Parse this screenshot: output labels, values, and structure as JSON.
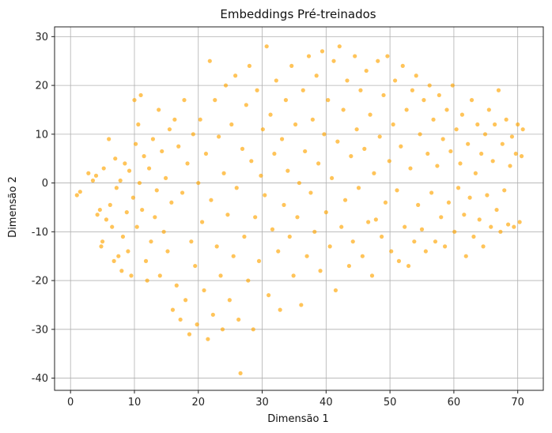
{
  "chart_data": {
    "type": "scatter",
    "title": "Embeddings Pré-treinados",
    "xlabel": "Dimensão 1",
    "ylabel": "Dimensão 2",
    "xlim": [
      -2.5,
      74
    ],
    "ylim": [
      -42.5,
      32
    ],
    "xticks": [
      0,
      10,
      20,
      30,
      40,
      50,
      60,
      70
    ],
    "yticks": [
      -40,
      -30,
      -20,
      -10,
      0,
      10,
      20,
      30
    ],
    "grid": true,
    "point_color": "#ffa500",
    "point_opacity": 0.65,
    "note_points": "approximate sample of the ~1000 points in the cloud",
    "points": [
      [
        1.0,
        -2.5
      ],
      [
        1.5,
        -1.8
      ],
      [
        2.8,
        2.0
      ],
      [
        3.5,
        0.5
      ],
      [
        4.0,
        1.5
      ],
      [
        4.2,
        -6.5
      ],
      [
        4.6,
        -5.5
      ],
      [
        4.8,
        -13
      ],
      [
        5.0,
        -12
      ],
      [
        5.2,
        3.0
      ],
      [
        5.6,
        -7.5
      ],
      [
        6.0,
        9.0
      ],
      [
        6.2,
        -4.5
      ],
      [
        6.5,
        -9.0
      ],
      [
        6.8,
        -16
      ],
      [
        7.0,
        5.0
      ],
      [
        7.2,
        -1.0
      ],
      [
        7.5,
        -15
      ],
      [
        7.8,
        0.5
      ],
      [
        8.0,
        -18
      ],
      [
        8.2,
        -11
      ],
      [
        8.5,
        4.0
      ],
      [
        8.8,
        -6.0
      ],
      [
        9.0,
        -14
      ],
      [
        9.2,
        2.5
      ],
      [
        9.5,
        -19
      ],
      [
        9.8,
        -3.0
      ],
      [
        10.0,
        17
      ],
      [
        10.2,
        8.0
      ],
      [
        10.4,
        -9
      ],
      [
        10.6,
        12
      ],
      [
        10.8,
        0.0
      ],
      [
        11.0,
        18
      ],
      [
        11.2,
        -5.5
      ],
      [
        11.5,
        5.5
      ],
      [
        11.8,
        -16
      ],
      [
        12.0,
        -20
      ],
      [
        12.3,
        3.0
      ],
      [
        12.6,
        -12
      ],
      [
        12.9,
        9.0
      ],
      [
        13.2,
        -7.0
      ],
      [
        13.5,
        -1.5
      ],
      [
        13.8,
        15
      ],
      [
        14.0,
        -19
      ],
      [
        14.3,
        6.5
      ],
      [
        14.6,
        -10
      ],
      [
        14.9,
        1.0
      ],
      [
        15.2,
        -14
      ],
      [
        15.5,
        11
      ],
      [
        15.8,
        -4.0
      ],
      [
        16.0,
        -26
      ],
      [
        16.3,
        13
      ],
      [
        16.6,
        -21
      ],
      [
        16.9,
        7.5
      ],
      [
        17.2,
        -28
      ],
      [
        17.5,
        -2.0
      ],
      [
        17.8,
        17
      ],
      [
        18.0,
        -24
      ],
      [
        18.3,
        4.0
      ],
      [
        18.6,
        -31
      ],
      [
        18.9,
        -12
      ],
      [
        19.2,
        10
      ],
      [
        19.5,
        -17
      ],
      [
        19.8,
        -29
      ],
      [
        20.0,
        0.0
      ],
      [
        20.3,
        13
      ],
      [
        20.6,
        -8.0
      ],
      [
        20.9,
        -22
      ],
      [
        21.2,
        6.0
      ],
      [
        21.5,
        -32
      ],
      [
        21.8,
        25
      ],
      [
        22.0,
        -3.5
      ],
      [
        22.3,
        -27
      ],
      [
        22.6,
        17
      ],
      [
        22.9,
        -13
      ],
      [
        23.2,
        9.5
      ],
      [
        23.5,
        -19
      ],
      [
        23.8,
        -30
      ],
      [
        24.0,
        2.0
      ],
      [
        24.3,
        20
      ],
      [
        24.6,
        -6.5
      ],
      [
        24.9,
        -24
      ],
      [
        25.2,
        12
      ],
      [
        25.5,
        -15
      ],
      [
        25.8,
        22
      ],
      [
        26.0,
        -1.0
      ],
      [
        26.3,
        -28
      ],
      [
        26.6,
        -39
      ],
      [
        26.9,
        7.0
      ],
      [
        27.2,
        -11
      ],
      [
        27.5,
        16
      ],
      [
        27.8,
        -20
      ],
      [
        28.0,
        24
      ],
      [
        28.3,
        4.5
      ],
      [
        28.6,
        -30
      ],
      [
        28.9,
        -7.0
      ],
      [
        29.2,
        19
      ],
      [
        29.5,
        -16
      ],
      [
        29.8,
        1.5
      ],
      [
        30.1,
        11
      ],
      [
        30.4,
        -2.5
      ],
      [
        30.7,
        28
      ],
      [
        31.0,
        -23
      ],
      [
        31.3,
        14
      ],
      [
        31.6,
        -9.5
      ],
      [
        31.9,
        6.0
      ],
      [
        32.2,
        21
      ],
      [
        32.5,
        -14
      ],
      [
        32.8,
        -26
      ],
      [
        33.1,
        9.0
      ],
      [
        33.4,
        -4.5
      ],
      [
        33.7,
        17
      ],
      [
        34.0,
        2.5
      ],
      [
        34.3,
        -11
      ],
      [
        34.6,
        24
      ],
      [
        34.9,
        -19
      ],
      [
        35.2,
        12
      ],
      [
        35.5,
        -7.0
      ],
      [
        35.8,
        0.0
      ],
      [
        36.1,
        -25
      ],
      [
        36.4,
        19
      ],
      [
        36.7,
        6.5
      ],
      [
        37.0,
        -15
      ],
      [
        37.3,
        26
      ],
      [
        37.6,
        -2.0
      ],
      [
        37.9,
        13
      ],
      [
        38.2,
        -10
      ],
      [
        38.5,
        22
      ],
      [
        38.8,
        4.0
      ],
      [
        39.1,
        -18
      ],
      [
        39.4,
        27
      ],
      [
        39.7,
        10
      ],
      [
        40.0,
        -6.0
      ],
      [
        40.3,
        17
      ],
      [
        40.6,
        -13
      ],
      [
        40.9,
        1.0
      ],
      [
        41.2,
        25
      ],
      [
        41.5,
        -22
      ],
      [
        41.8,
        8.5
      ],
      [
        42.1,
        28
      ],
      [
        42.4,
        -9.0
      ],
      [
        42.7,
        15
      ],
      [
        43.0,
        -3.5
      ],
      [
        43.3,
        21
      ],
      [
        43.6,
        -17
      ],
      [
        43.9,
        5.5
      ],
      [
        44.2,
        -12
      ],
      [
        44.5,
        26
      ],
      [
        44.8,
        11
      ],
      [
        45.1,
        -1.0
      ],
      [
        45.4,
        19
      ],
      [
        45.7,
        -15
      ],
      [
        46.0,
        7.0
      ],
      [
        46.3,
        23
      ],
      [
        46.6,
        -8.0
      ],
      [
        46.9,
        14
      ],
      [
        47.2,
        -19
      ],
      [
        47.5,
        2.0
      ],
      [
        47.8,
        -7.5
      ],
      [
        48.1,
        25
      ],
      [
        48.4,
        9.5
      ],
      [
        48.7,
        -11
      ],
      [
        49.0,
        18
      ],
      [
        49.3,
        -4.0
      ],
      [
        49.6,
        26
      ],
      [
        49.9,
        4.5
      ],
      [
        50.2,
        -14
      ],
      [
        50.5,
        12
      ],
      [
        50.8,
        21
      ],
      [
        51.1,
        -1.5
      ],
      [
        51.4,
        -16
      ],
      [
        51.7,
        7.5
      ],
      [
        52.0,
        24
      ],
      [
        52.3,
        -9.0
      ],
      [
        52.6,
        15
      ],
      [
        52.9,
        -17
      ],
      [
        53.2,
        3.0
      ],
      [
        53.5,
        19
      ],
      [
        53.8,
        -12
      ],
      [
        54.1,
        22
      ],
      [
        54.4,
        -4.5
      ],
      [
        54.7,
        10
      ],
      [
        55.0,
        -9.5
      ],
      [
        55.3,
        17
      ],
      [
        55.6,
        -14
      ],
      [
        55.9,
        6.0
      ],
      [
        56.2,
        20
      ],
      [
        56.5,
        -2.0
      ],
      [
        56.8,
        13
      ],
      [
        57.1,
        -12
      ],
      [
        57.4,
        3.5
      ],
      [
        57.7,
        18
      ],
      [
        58.0,
        -7.0
      ],
      [
        58.3,
        9.0
      ],
      [
        58.6,
        -13
      ],
      [
        58.9,
        15
      ],
      [
        59.2,
        -4.0
      ],
      [
        59.5,
        6.5
      ],
      [
        59.8,
        20
      ],
      [
        60.1,
        -10
      ],
      [
        60.4,
        11
      ],
      [
        60.7,
        -1.0
      ],
      [
        61.0,
        4.0
      ],
      [
        61.3,
        14
      ],
      [
        61.6,
        -6.5
      ],
      [
        61.9,
        -15
      ],
      [
        62.2,
        8.0
      ],
      [
        62.5,
        -3.0
      ],
      [
        62.8,
        17
      ],
      [
        63.1,
        -11
      ],
      [
        63.4,
        2.0
      ],
      [
        63.7,
        12
      ],
      [
        64.0,
        -7.5
      ],
      [
        64.3,
        6.0
      ],
      [
        64.6,
        -13
      ],
      [
        64.9,
        10
      ],
      [
        65.2,
        -2.5
      ],
      [
        65.5,
        15
      ],
      [
        65.8,
        -9.0
      ],
      [
        66.1,
        4.5
      ],
      [
        66.4,
        12
      ],
      [
        66.7,
        -5.5
      ],
      [
        67.0,
        19
      ],
      [
        67.3,
        -10
      ],
      [
        67.6,
        8.0
      ],
      [
        67.9,
        -1.5
      ],
      [
        68.2,
        13
      ],
      [
        68.5,
        -8.5
      ],
      [
        68.8,
        3.5
      ],
      [
        69.1,
        9.5
      ],
      [
        69.4,
        -9.0
      ],
      [
        69.7,
        6.0
      ],
      [
        70.0,
        12
      ],
      [
        70.3,
        -8.0
      ],
      [
        70.6,
        5.5
      ],
      [
        70.8,
        11
      ]
    ]
  }
}
